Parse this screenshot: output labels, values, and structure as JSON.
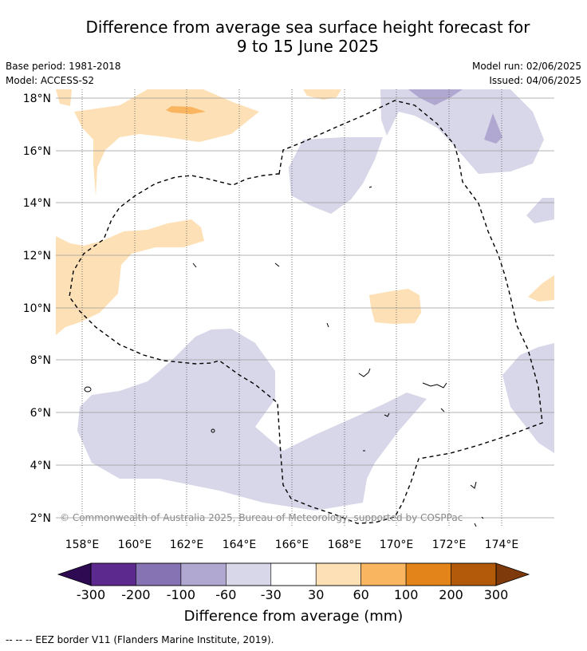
{
  "title": {
    "line1": "Difference from average sea surface height forecast for",
    "line2": "9 to 15 June 2025"
  },
  "meta": {
    "base_period": "Base period: 1981-2018",
    "model": "Model: ACCESS-S2",
    "model_run": "Model run: 02/06/2025",
    "issued": "Issued: 04/06/2025"
  },
  "map": {
    "lat_labels": [
      "18°N",
      "16°N",
      "14°N",
      "12°N",
      "10°N",
      "8°N",
      "6°N",
      "4°N",
      "2°N"
    ],
    "lon_labels": [
      "158°E",
      "160°E",
      "162°E",
      "164°E",
      "166°E",
      "168°E",
      "170°E",
      "172°E",
      "174°E"
    ],
    "copyright": "© Commonwealth of Australia 2025, Bureau of Meteorology, supported by COSPPac"
  },
  "colorbar": {
    "title": "Difference from average (mm)",
    "tick_labels": [
      "-300",
      "-200",
      "-100",
      "-60",
      "-30",
      "30",
      "60",
      "100",
      "200",
      "300"
    ],
    "colors": [
      "#2d0a52",
      "#5c2a8e",
      "#8573b3",
      "#b1a8d2",
      "#d7d7e9",
      "#ffffff",
      "#fde0b5",
      "#f9b560",
      "#e3841b",
      "#b3590a",
      "#7e3a0b"
    ]
  },
  "legend": {
    "eez": "--  --  -- EEZ border V11 (Flanders Marine Institute, 2019)."
  }
}
